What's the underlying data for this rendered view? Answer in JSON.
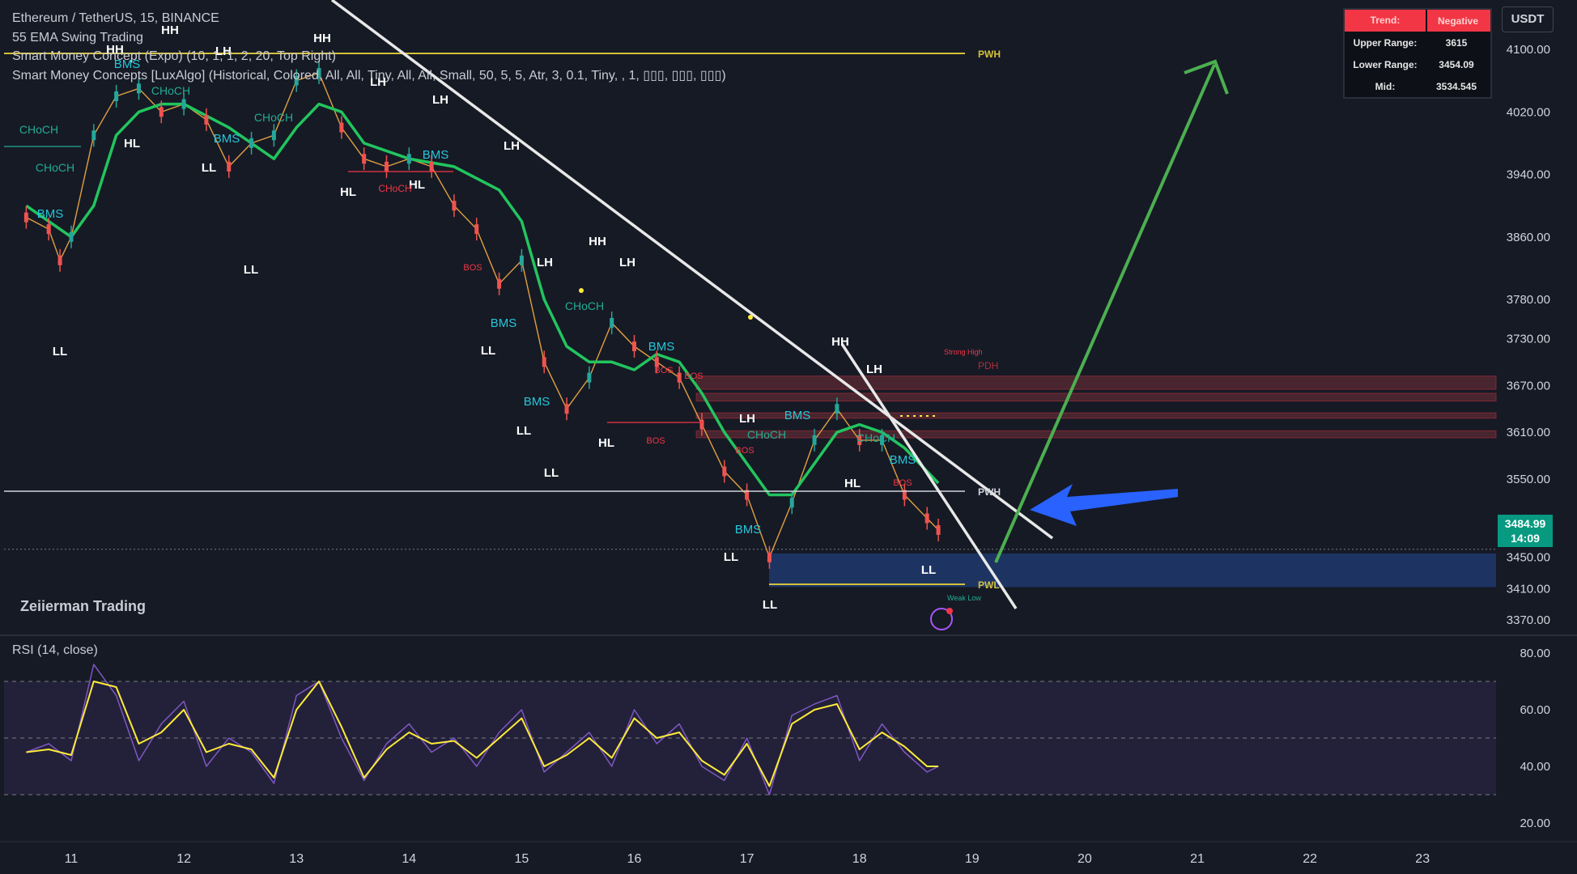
{
  "legend": {
    "symbol": "Ethereum / TetherUS, 15, BINANCE",
    "ind1": "55 EMA Swing Trading",
    "ind2": "Smart Money Concept (Expo) (10, 1, 1, 2, 20, Top Right)",
    "ind3": "Smart Money Concepts [LuxAlgo] (Historical, Colored, All, All, Tiny, All, All, Small, 50, 5, 5, Atr, 3, 0.1, Tiny, , 1, ▯▯▯, ▯▯▯, ▯▯▯)"
  },
  "brand": "Zeiierman Trading",
  "rsi_label": "RSI (14, close)",
  "currency": "USDT",
  "last_price": "3484.99",
  "countdown": "14:09",
  "trend_table": {
    "trend_label": "Trend:",
    "trend_value": "Negative",
    "upper_label": "Upper Range:",
    "upper_value": "3615",
    "lower_label": "Lower Range:",
    "lower_value": "3454.09",
    "mid_label": "Mid:",
    "mid_value": "3534.545"
  },
  "colors": {
    "background": "#161a25",
    "ema": "#22c55e",
    "bms": "#26c6da",
    "choch": "#22ab94",
    "bos_red": "#f23645",
    "rsi_line": "#7e57c2",
    "rsi_ma": "#ffeb3b",
    "arrow_green": "#4caf50",
    "arrow_blue": "#2962ff",
    "zone_blue": "#1e3a6e",
    "zone_red": "#5a2a33"
  },
  "chart_data": [
    {
      "type": "line",
      "description_type": "candlestick price chart",
      "title": "Ethereum / TetherUS, 15, BINANCE",
      "x_ticks": [
        "11",
        "12",
        "13",
        "14",
        "15",
        "16",
        "17",
        "18",
        "19",
        "20",
        "21",
        "22",
        "23"
      ],
      "y_ticks": [
        "4100.00",
        "4020.00",
        "3940.00",
        "3860.00",
        "3780.00",
        "3730.00",
        "3670.00",
        "3610.00",
        "3550.00",
        "3450.00",
        "3410.00",
        "3370.00"
      ],
      "ylim": [
        3350,
        4120
      ],
      "series": [
        {
          "name": "",
          "x": [
            10.6,
            10.8,
            10.9,
            11.0,
            11.2,
            11.4,
            11.6,
            11.8,
            12.0,
            12.2,
            12.4,
            12.6,
            12.8,
            13.0,
            13.2,
            13.4,
            13.6,
            13.8,
            14.0,
            14.2,
            14.4,
            14.6,
            14.8,
            15.0,
            15.2,
            15.4,
            15.6,
            15.8,
            16.0,
            16.2,
            16.4,
            16.6,
            16.8,
            17.0,
            17.2,
            17.4,
            17.6,
            17.8,
            18.0,
            18.2,
            18.4,
            18.6,
            18.7
          ],
          "values": [
            3885,
            3870,
            3830,
            3860,
            3990,
            4040,
            4050,
            4020,
            4030,
            4010,
            3950,
            3980,
            3990,
            4060,
            4070,
            4000,
            3960,
            3950,
            3960,
            3950,
            3900,
            3870,
            3800,
            3830,
            3700,
            3640,
            3680,
            3750,
            3720,
            3700,
            3680,
            3620,
            3560,
            3530,
            3450,
            3520,
            3600,
            3640,
            3600,
            3600,
            3530,
            3500,
            3485
          ]
        },
        {
          "name": "55 EMA",
          "x": [
            10.6,
            11.0,
            11.2,
            11.4,
            11.6,
            11.8,
            12.0,
            12.4,
            12.8,
            13.0,
            13.2,
            13.4,
            13.6,
            14.0,
            14.4,
            14.8,
            15.0,
            15.2,
            15.4,
            15.6,
            15.8,
            16.0,
            16.2,
            16.4,
            16.6,
            16.8,
            17.0,
            17.2,
            17.4,
            17.6,
            17.8,
            18.0,
            18.2,
            18.4,
            18.6,
            18.7
          ],
          "values": [
            3900,
            3860,
            3900,
            3990,
            4020,
            4030,
            4030,
            4000,
            3960,
            4000,
            4030,
            4020,
            3980,
            3960,
            3950,
            3920,
            3880,
            3780,
            3720,
            3700,
            3700,
            3690,
            3710,
            3700,
            3660,
            3610,
            3570,
            3530,
            3530,
            3570,
            3610,
            3620,
            3610,
            3590,
            3560,
            3545
          ]
        }
      ],
      "annotations": [
        "HH",
        "HH",
        "HH",
        "LH",
        "LH",
        "HL",
        "LL",
        "LL",
        "HL",
        "LL",
        "HL",
        "LH",
        "LL",
        "LL",
        "HL",
        "HH",
        "LH",
        "LH",
        "LL",
        "LH",
        "LL",
        "HH",
        "LH",
        "HL",
        "LL",
        "LL",
        "BMS",
        "CHoCH",
        "BOS",
        "PWH",
        "PWL",
        "PDH",
        "Strong High",
        "Weak Low"
      ]
    },
    {
      "type": "line",
      "title": "RSI (14, close)",
      "y_ticks": [
        "80.00",
        "60.00",
        "40.00",
        "20.00"
      ],
      "ylim": [
        15,
        85
      ],
      "bands": [
        70,
        50,
        30
      ],
      "series": [
        {
          "name": "",
          "x": [
            10.6,
            10.8,
            11.0,
            11.2,
            11.4,
            11.6,
            11.8,
            12.0,
            12.2,
            12.4,
            12.6,
            12.8,
            13.0,
            13.2,
            13.4,
            13.6,
            13.8,
            14.0,
            14.2,
            14.4,
            14.6,
            14.8,
            15.0,
            15.2,
            15.4,
            15.6,
            15.8,
            16.0,
            16.2,
            16.4,
            16.6,
            16.8,
            17.0,
            17.2,
            17.4,
            17.6,
            17.8,
            18.0,
            18.2,
            18.4,
            18.6,
            18.7
          ],
          "values": [
            45,
            48,
            42,
            76,
            65,
            42,
            55,
            63,
            40,
            50,
            45,
            34,
            65,
            70,
            50,
            35,
            48,
            55,
            45,
            50,
            40,
            52,
            60,
            38,
            45,
            52,
            40,
            60,
            48,
            55,
            40,
            35,
            50,
            30,
            58,
            62,
            65,
            42,
            55,
            45,
            38,
            40
          ]
        },
        {
          "name": "",
          "x": [
            10.6,
            10.8,
            11.0,
            11.2,
            11.4,
            11.6,
            11.8,
            12.0,
            12.2,
            12.4,
            12.6,
            12.8,
            13.0,
            13.2,
            13.4,
            13.6,
            13.8,
            14.0,
            14.2,
            14.4,
            14.6,
            14.8,
            15.0,
            15.2,
            15.4,
            15.6,
            15.8,
            16.0,
            16.2,
            16.4,
            16.6,
            16.8,
            17.0,
            17.2,
            17.4,
            17.6,
            17.8,
            18.0,
            18.2,
            18.4,
            18.6,
            18.7
          ],
          "values": [
            45,
            46,
            44,
            70,
            68,
            48,
            52,
            60,
            45,
            48,
            46,
            36,
            60,
            70,
            54,
            36,
            46,
            52,
            48,
            49,
            43,
            50,
            57,
            40,
            44,
            50,
            43,
            57,
            50,
            52,
            42,
            37,
            48,
            33,
            55,
            60,
            62,
            46,
            52,
            47,
            40,
            40
          ]
        }
      ]
    }
  ],
  "axis_labels": {
    "rsi_ticks": [
      "80.00",
      "60.00",
      "40.00",
      "20.00"
    ]
  },
  "levels": {
    "pwh": "PWH",
    "pwl": "PWL",
    "pdh": "PDH",
    "strong_high": "Strong High",
    "weak_low": "Weak Low"
  }
}
